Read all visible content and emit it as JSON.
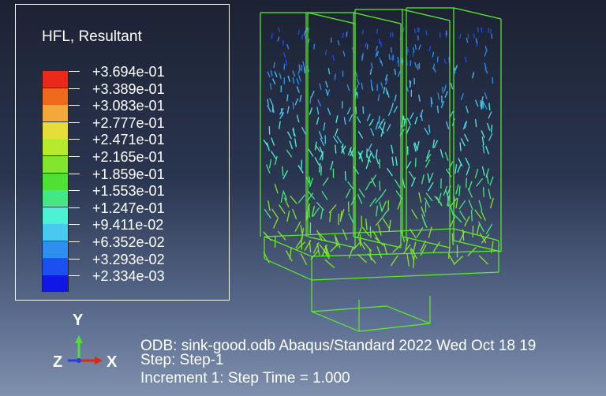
{
  "legend": {
    "title": "HFL, Resultant",
    "levels": [
      {
        "label": "+3.694e-01",
        "color": "#e8291c"
      },
      {
        "label": "+3.389e-01",
        "color": "#f06a1e"
      },
      {
        "label": "+3.083e-01",
        "color": "#f4a83a"
      },
      {
        "label": "+2.777e-01",
        "color": "#e6dc3a"
      },
      {
        "label": "+2.471e-01",
        "color": "#b6ea2e"
      },
      {
        "label": "+2.165e-01",
        "color": "#82e62e"
      },
      {
        "label": "+1.859e-01",
        "color": "#4fe036"
      },
      {
        "label": "+1.553e-01",
        "color": "#43e884"
      },
      {
        "label": "+1.247e-01",
        "color": "#4df2d6"
      },
      {
        "label": "+9.411e-02",
        "color": "#48c9f0"
      },
      {
        "label": "+6.352e-02",
        "color": "#2f8ff0"
      },
      {
        "label": "+3.293e-02",
        "color": "#1d4ff0"
      },
      {
        "label": "+2.334e-03",
        "color": "#1016e6"
      }
    ]
  },
  "triad": {
    "y": "Y",
    "z": "Z",
    "x": "X"
  },
  "info": {
    "odb_line": "ODB: sink-good.odb    Abaqus/Standard 2022    Wed Oct 18 19",
    "step_line": "Step: Step-1",
    "increment_line": "Increment      1: Step Time =    1.000"
  },
  "colors": {
    "mesh_edge": "#5cf02a",
    "background_top": "#1c2233",
    "background_bottom": "#7f90ae"
  }
}
